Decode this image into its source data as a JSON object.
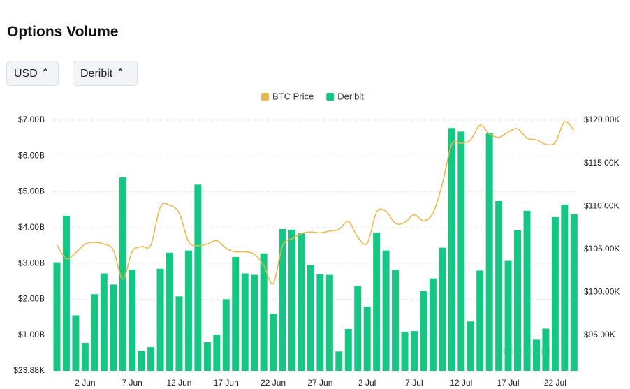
{
  "header": {
    "title": "Options Volume",
    "selectors": [
      "USD",
      "Deribit"
    ]
  },
  "watermark": "coinglass",
  "chart_data": {
    "type": "bar-line",
    "categories": [
      null,
      null,
      null,
      "2 Jun",
      null,
      null,
      null,
      null,
      "7 Jun",
      null,
      null,
      null,
      null,
      "12 Jun",
      null,
      null,
      null,
      null,
      "17 Jun",
      null,
      null,
      null,
      null,
      "22 Jun",
      null,
      null,
      null,
      null,
      "27 Jun",
      null,
      null,
      null,
      null,
      "2 Jul",
      null,
      null,
      null,
      null,
      "7 Jul",
      null,
      null,
      null,
      null,
      "12 Jul",
      null,
      null,
      null,
      null,
      "17 Jul",
      null,
      null,
      null,
      null,
      "22 Jul",
      null,
      null
    ],
    "series": [
      {
        "name": "BTC Price",
        "color": "#e8b84a",
        "axis": "y2",
        "kind": "line",
        "values": [
          105.5,
          103.9,
          104.6,
          105.6,
          105.8,
          105.6,
          104.9,
          101.5,
          104.7,
          105.3,
          105.5,
          109.9,
          110.1,
          109.2,
          105.9,
          105.4,
          105.6,
          106.0,
          105.1,
          104.7,
          104.7,
          104.4,
          103.1,
          101.0,
          105.4,
          106.2,
          106.8,
          107.0,
          106.9,
          107.1,
          107.3,
          108.2,
          106.4,
          105.7,
          109.3,
          109.4,
          108.0,
          108.1,
          109.0,
          108.3,
          109.2,
          112.6,
          117.2,
          117.3,
          117.7,
          119.4,
          118.4,
          118.0,
          118.6,
          119.0,
          117.9,
          117.7,
          117.2,
          117.4,
          119.8,
          118.8
        ]
      },
      {
        "name": "Deribit",
        "color": "#16c784",
        "kind": "bar",
        "values": [
          3.03,
          4.33,
          1.55,
          0.78,
          2.14,
          2.72,
          2.41,
          5.4,
          2.82,
          0.56,
          0.66,
          2.85,
          3.3,
          2.08,
          3.36,
          5.2,
          0.8,
          1.01,
          2.0,
          3.18,
          2.72,
          2.68,
          3.28,
          1.59,
          3.96,
          3.94,
          3.84,
          2.95,
          2.7,
          2.68,
          0.54,
          1.17,
          2.37,
          1.79,
          3.86,
          3.36,
          2.82,
          1.09,
          1.11,
          2.23,
          2.58,
          3.44,
          6.78,
          6.68,
          1.38,
          2.8,
          6.64,
          4.74,
          3.07,
          3.92,
          4.47,
          0.87,
          1.18,
          4.29,
          4.64,
          4.37
        ]
      }
    ],
    "ylim": [
      2.388e-05,
      7
    ],
    "yticks": [
      {
        "value": 2.388e-05,
        "label": "$23.88K"
      },
      {
        "value": 1,
        "label": "$1.00B"
      },
      {
        "value": 2,
        "label": "$2.00B"
      },
      {
        "value": 3,
        "label": "$3.00B"
      },
      {
        "value": 4,
        "label": "$4.00B"
      },
      {
        "value": 5,
        "label": "$5.00B"
      },
      {
        "value": 6,
        "label": "$6.00B"
      },
      {
        "value": 7,
        "label": "$7.00B"
      }
    ],
    "y2lim": [
      90.86,
      120
    ],
    "y2ticks": [
      {
        "value": 95,
        "label": "$95.00K"
      },
      {
        "value": 100,
        "label": "$100.00K"
      },
      {
        "value": 105,
        "label": "$105.00K"
      },
      {
        "value": 110,
        "label": "$110.00K"
      },
      {
        "value": 115,
        "label": "$115.00K"
      },
      {
        "value": 120,
        "label": "$120.00K"
      }
    ],
    "grid": true,
    "legend": "top"
  }
}
